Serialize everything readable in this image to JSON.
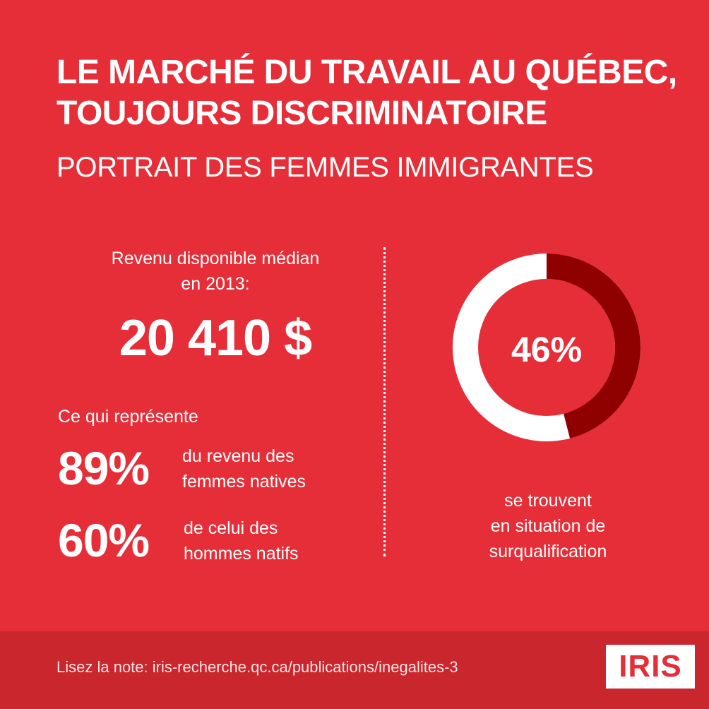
{
  "header": {
    "title_line1": "LE MARCHÉ DU TRAVAIL AU QUÉBEC,",
    "title_line2": "TOUJOURS DISCRIMINATOIRE",
    "subtitle": "PORTRAIT DES FEMMES IMMIGRANTES"
  },
  "income": {
    "label_line1": "Revenu disponible médian",
    "label_line2": "en 2013:",
    "value": "20 410 $",
    "represents": "Ce qui représente",
    "stats": [
      {
        "value": "89%",
        "text_line1": "du revenu des",
        "text_line2": "femmes natives"
      },
      {
        "value": "60%",
        "text_line1": "de celui des",
        "text_line2": "hommes natifs"
      }
    ]
  },
  "overqualification": {
    "percent_label": "46%",
    "percent": 46,
    "caption_line1": "se trouvent",
    "caption_line2": "en situation de",
    "caption_line3": "surqualification",
    "colors": {
      "filled": "#8f0000",
      "remaining": "#ffffff"
    }
  },
  "footer": {
    "note": "Lisez la note: iris-recherche.qc.ca/publications/inegalites-3",
    "logo": "IRIS"
  },
  "colors": {
    "background": "#e52e38",
    "footer_background": "#c9262e",
    "text": "#ffffff"
  }
}
